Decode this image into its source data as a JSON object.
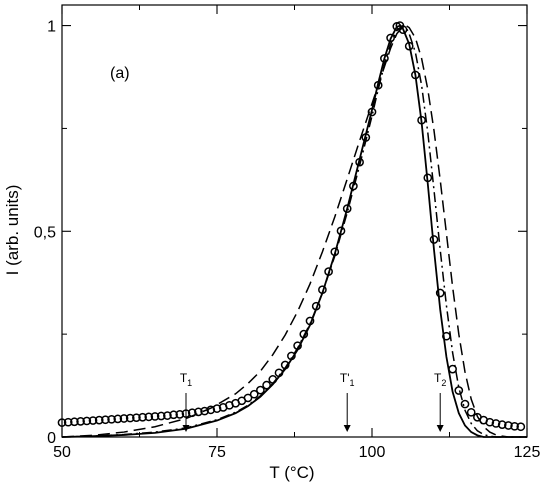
{
  "chart_data": {
    "type": "line",
    "panel_label": "(a)",
    "xlabel": "T (°C)",
    "ylabel": "I (arb. units)",
    "xlim": [
      50,
      125
    ],
    "ylim": [
      0,
      1.05
    ],
    "x_ticks": [
      {
        "value": 50,
        "label": "50"
      },
      {
        "value": 75,
        "label": "75"
      },
      {
        "value": 100,
        "label": "100"
      },
      {
        "value": 125,
        "label": "125"
      }
    ],
    "y_ticks": [
      {
        "value": 0,
        "label": "0"
      },
      {
        "value": 0.5,
        "label": "0,5"
      },
      {
        "value": 1,
        "label": "1"
      }
    ],
    "grid": false,
    "legend": "none",
    "series": [
      {
        "style": "markers-circle",
        "points": [
          [
            50,
            0.035
          ],
          [
            51,
            0.036
          ],
          [
            52,
            0.037
          ],
          [
            53,
            0.038
          ],
          [
            54,
            0.039
          ],
          [
            55,
            0.04
          ],
          [
            56,
            0.041
          ],
          [
            57,
            0.042
          ],
          [
            58,
            0.043
          ],
          [
            59,
            0.044
          ],
          [
            60,
            0.045
          ],
          [
            61,
            0.046
          ],
          [
            62,
            0.047
          ],
          [
            63,
            0.048
          ],
          [
            64,
            0.049
          ],
          [
            65,
            0.05
          ],
          [
            66,
            0.051
          ],
          [
            67,
            0.052
          ],
          [
            68,
            0.054
          ],
          [
            69,
            0.055
          ],
          [
            70,
            0.057
          ],
          [
            71,
            0.059
          ],
          [
            72,
            0.061
          ],
          [
            73,
            0.063
          ],
          [
            74,
            0.066
          ],
          [
            75,
            0.069
          ],
          [
            76,
            0.072
          ],
          [
            77,
            0.077
          ],
          [
            78,
            0.082
          ],
          [
            79,
            0.088
          ],
          [
            80,
            0.095
          ],
          [
            81,
            0.104
          ],
          [
            82,
            0.114
          ],
          [
            83,
            0.126
          ],
          [
            84,
            0.14
          ],
          [
            85,
            0.156
          ],
          [
            86,
            0.175
          ],
          [
            87,
            0.197
          ],
          [
            88,
            0.222
          ],
          [
            89,
            0.25
          ],
          [
            90,
            0.282
          ],
          [
            91,
            0.318
          ],
          [
            92,
            0.358
          ],
          [
            93,
            0.402
          ],
          [
            94,
            0.45
          ],
          [
            95,
            0.501
          ],
          [
            96,
            0.555
          ],
          [
            97,
            0.61
          ],
          [
            98,
            0.668
          ],
          [
            99,
            0.728
          ],
          [
            100,
            0.79
          ],
          [
            101,
            0.855
          ],
          [
            102,
            0.92
          ],
          [
            103,
            0.97
          ],
          [
            104,
            0.998
          ],
          [
            104.5,
            1.0
          ],
          [
            105,
            0.99
          ],
          [
            106,
            0.95
          ],
          [
            107,
            0.88
          ],
          [
            108,
            0.77
          ],
          [
            109,
            0.63
          ],
          [
            110,
            0.48
          ],
          [
            111,
            0.35
          ],
          [
            112,
            0.245
          ],
          [
            113,
            0.165
          ],
          [
            114,
            0.113
          ],
          [
            115,
            0.08
          ],
          [
            116,
            0.06
          ],
          [
            117,
            0.048
          ],
          [
            118,
            0.041
          ],
          [
            119,
            0.036
          ],
          [
            120,
            0.033
          ],
          [
            121,
            0.03
          ],
          [
            122,
            0.028
          ],
          [
            123,
            0.026
          ],
          [
            124,
            0.025
          ]
        ]
      },
      {
        "style": "solid",
        "points": [
          [
            50,
            0.0
          ],
          [
            55,
            0.002
          ],
          [
            60,
            0.005
          ],
          [
            65,
            0.01
          ],
          [
            70,
            0.02
          ],
          [
            75,
            0.04
          ],
          [
            78,
            0.058
          ],
          [
            80,
            0.075
          ],
          [
            82,
            0.098
          ],
          [
            84,
            0.128
          ],
          [
            86,
            0.165
          ],
          [
            88,
            0.212
          ],
          [
            90,
            0.272
          ],
          [
            92,
            0.35
          ],
          [
            94,
            0.445
          ],
          [
            96,
            0.555
          ],
          [
            98,
            0.675
          ],
          [
            100,
            0.795
          ],
          [
            101,
            0.86
          ],
          [
            102,
            0.92
          ],
          [
            103,
            0.968
          ],
          [
            104,
            0.997
          ],
          [
            104.6,
            1.0
          ],
          [
            105,
            0.992
          ],
          [
            106,
            0.955
          ],
          [
            107,
            0.88
          ],
          [
            108,
            0.765
          ],
          [
            109,
            0.615
          ],
          [
            110,
            0.455
          ],
          [
            111,
            0.31
          ],
          [
            112,
            0.195
          ],
          [
            113,
            0.11
          ],
          [
            114,
            0.058
          ],
          [
            115,
            0.028
          ],
          [
            116,
            0.012
          ],
          [
            117,
            0.004
          ],
          [
            118,
            0.0
          ],
          [
            120,
            0.0
          ],
          [
            125,
            0.0
          ]
        ]
      },
      {
        "style": "dash-dot",
        "points": [
          [
            50,
            0.0
          ],
          [
            55,
            0.002
          ],
          [
            60,
            0.006
          ],
          [
            65,
            0.012
          ],
          [
            70,
            0.022
          ],
          [
            75,
            0.042
          ],
          [
            78,
            0.06
          ],
          [
            80,
            0.077
          ],
          [
            82,
            0.1
          ],
          [
            84,
            0.13
          ],
          [
            86,
            0.168
          ],
          [
            88,
            0.216
          ],
          [
            90,
            0.275
          ],
          [
            92,
            0.35
          ],
          [
            94,
            0.44
          ],
          [
            96,
            0.545
          ],
          [
            98,
            0.66
          ],
          [
            100,
            0.78
          ],
          [
            101,
            0.845
          ],
          [
            102,
            0.905
          ],
          [
            103,
            0.955
          ],
          [
            104,
            0.988
          ],
          [
            105,
            1.0
          ],
          [
            105.5,
            0.995
          ],
          [
            106,
            0.98
          ],
          [
            107,
            0.935
          ],
          [
            108,
            0.855
          ],
          [
            109,
            0.74
          ],
          [
            110,
            0.6
          ],
          [
            111,
            0.455
          ],
          [
            112,
            0.32
          ],
          [
            113,
            0.205
          ],
          [
            114,
            0.12
          ],
          [
            115,
            0.065
          ],
          [
            116,
            0.033
          ],
          [
            117,
            0.015
          ],
          [
            118,
            0.006
          ],
          [
            119,
            0.002
          ],
          [
            120,
            0.0
          ],
          [
            125,
            0.0
          ]
        ]
      },
      {
        "style": "dashed",
        "points": [
          [
            50,
            0.0
          ],
          [
            55,
            0.004
          ],
          [
            60,
            0.012
          ],
          [
            65,
            0.025
          ],
          [
            70,
            0.045
          ],
          [
            74,
            0.07
          ],
          [
            78,
            0.105
          ],
          [
            80,
            0.13
          ],
          [
            82,
            0.16
          ],
          [
            84,
            0.2
          ],
          [
            86,
            0.248
          ],
          [
            88,
            0.305
          ],
          [
            90,
            0.372
          ],
          [
            92,
            0.45
          ],
          [
            94,
            0.535
          ],
          [
            96,
            0.627
          ],
          [
            98,
            0.72
          ],
          [
            100,
            0.81
          ],
          [
            101,
            0.855
          ],
          [
            102,
            0.9
          ],
          [
            103,
            0.945
          ],
          [
            104,
            0.98
          ],
          [
            105,
            0.998
          ],
          [
            105.5,
            1.0
          ],
          [
            106,
            0.995
          ],
          [
            107,
            0.97
          ],
          [
            108,
            0.92
          ],
          [
            109,
            0.845
          ],
          [
            110,
            0.745
          ],
          [
            111,
            0.625
          ],
          [
            112,
            0.495
          ],
          [
            113,
            0.365
          ],
          [
            114,
            0.25
          ],
          [
            115,
            0.158
          ],
          [
            116,
            0.092
          ],
          [
            117,
            0.05
          ],
          [
            118,
            0.025
          ],
          [
            119,
            0.012
          ],
          [
            120,
            0.005
          ],
          [
            121,
            0.002
          ],
          [
            122,
            0.0
          ],
          [
            125,
            0.0
          ]
        ]
      }
    ],
    "annotations": [
      {
        "label": "T",
        "sub": "1",
        "x": 70
      },
      {
        "label": "T'",
        "sub": "1",
        "x": 96
      },
      {
        "label": "T",
        "sub": "2",
        "x": 111
      }
    ]
  }
}
